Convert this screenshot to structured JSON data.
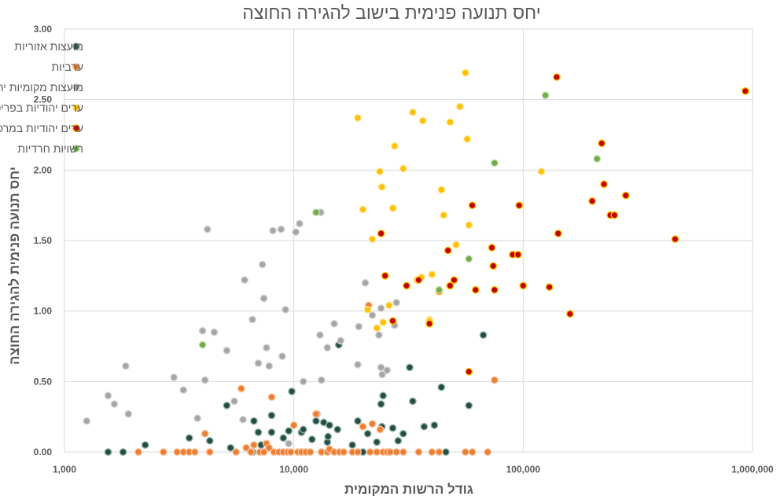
{
  "chart_data": {
    "type": "scatter",
    "title": "יחס תנועה פנימית בישוב להגירה החוצה",
    "xlabel": "גודל הרשות המקומית",
    "ylabel": "יחס תנועה פנימית להגירה החוצה",
    "xscale": "log",
    "xlim": [
      1000,
      1000000
    ],
    "ylim": [
      0,
      3
    ],
    "xticks": [
      {
        "value": 1000,
        "label": "1,000"
      },
      {
        "value": 10000,
        "label": "10,000"
      },
      {
        "value": 100000,
        "label": "100,000"
      },
      {
        "value": 1000000,
        "label": "1,000,000"
      }
    ],
    "yticks": [
      {
        "value": 0,
        "label": "0.00"
      },
      {
        "value": 0.5,
        "label": "0.50"
      },
      {
        "value": 1,
        "label": "1.00"
      },
      {
        "value": 1.5,
        "label": "1.50"
      },
      {
        "value": 2,
        "label": "2.00"
      },
      {
        "value": 2.5,
        "label": "2.50"
      },
      {
        "value": 3,
        "label": "3.00"
      }
    ],
    "grid": true,
    "legend_position": "top-left",
    "series": [
      {
        "name": "מועצות אזוריות",
        "color": "#264d3f",
        "edge": "#95b6ad",
        "points": [
          [
            1550,
            0.0
          ],
          [
            1800,
            0.0
          ],
          [
            2250,
            0.05
          ],
          [
            3500,
            0.1
          ],
          [
            4300,
            0.08
          ],
          [
            5100,
            0.33
          ],
          [
            5300,
            0.03
          ],
          [
            6600,
            0.0
          ],
          [
            6700,
            0.22
          ],
          [
            7000,
            0.14
          ],
          [
            7200,
            0.05
          ],
          [
            8000,
            0.26
          ],
          [
            8000,
            0.14
          ],
          [
            9000,
            0.1
          ],
          [
            9500,
            0.15
          ],
          [
            9800,
            0.43
          ],
          [
            10800,
            0.14
          ],
          [
            11000,
            0.16
          ],
          [
            12000,
            0.09
          ],
          [
            12500,
            0.22
          ],
          [
            12600,
            0.27
          ],
          [
            13200,
            0.0
          ],
          [
            13500,
            0.21
          ],
          [
            14000,
            0.07
          ],
          [
            14100,
            0.11
          ],
          [
            14300,
            0.19
          ],
          [
            15500,
            0.16
          ],
          [
            15700,
            0.76
          ],
          [
            18000,
            0.05
          ],
          [
            19000,
            0.22
          ],
          [
            20000,
            0.0
          ],
          [
            21000,
            0.13
          ],
          [
            23000,
            0.07
          ],
          [
            24000,
            0.34
          ],
          [
            24200,
            0.18
          ],
          [
            24500,
            0.4
          ],
          [
            26000,
            0.0
          ],
          [
            27000,
            0.17
          ],
          [
            28500,
            0.08
          ],
          [
            30000,
            0.13
          ],
          [
            32000,
            0.6
          ],
          [
            33000,
            0.36
          ],
          [
            37000,
            0.18
          ],
          [
            41000,
            0.19
          ],
          [
            44000,
            0.46
          ],
          [
            46000,
            0.0
          ],
          [
            58000,
            0.33
          ],
          [
            67000,
            0.83
          ]
        ]
      },
      {
        "name": "ערביות",
        "color": "#ed7d31",
        "edge": "#f8c39e",
        "points": [
          [
            2100,
            0.0
          ],
          [
            2700,
            0.0
          ],
          [
            3100,
            0.0
          ],
          [
            3300,
            0.0
          ],
          [
            3500,
            0.0
          ],
          [
            3700,
            0.0
          ],
          [
            4100,
            0.13
          ],
          [
            4300,
            0.0
          ],
          [
            5600,
            0.0
          ],
          [
            5900,
            0.45
          ],
          [
            6200,
            0.03
          ],
          [
            6500,
            0.0
          ],
          [
            6700,
            0.05
          ],
          [
            7100,
            0.0
          ],
          [
            7400,
            0.0
          ],
          [
            7600,
            0.06
          ],
          [
            7800,
            0.03
          ],
          [
            8000,
            0.39
          ],
          [
            8200,
            0.0
          ],
          [
            8600,
            0.0
          ],
          [
            9000,
            0.0
          ],
          [
            9400,
            0.0
          ],
          [
            9700,
            0.0
          ],
          [
            10000,
            0.19
          ],
          [
            10400,
            0.0
          ],
          [
            10800,
            0.0
          ],
          [
            11300,
            0.0
          ],
          [
            11800,
            0.0
          ],
          [
            12500,
            0.27
          ],
          [
            13200,
            0.0
          ],
          [
            14000,
            0.0
          ],
          [
            14300,
            0.02
          ],
          [
            15000,
            0.0
          ],
          [
            15800,
            0.0
          ],
          [
            16500,
            0.0
          ],
          [
            18000,
            0.0
          ],
          [
            19000,
            0.0
          ],
          [
            20000,
            0.18
          ],
          [
            21200,
            1.04
          ],
          [
            21500,
            0.0
          ],
          [
            22000,
            0.2
          ],
          [
            23000,
            0.0
          ],
          [
            23800,
            0.16
          ],
          [
            24500,
            0.0
          ],
          [
            25500,
            0.0
          ],
          [
            26300,
            0.0
          ],
          [
            28000,
            0.0
          ],
          [
            30000,
            0.0
          ],
          [
            35000,
            0.0
          ],
          [
            40000,
            0.0
          ],
          [
            43000,
            0.0
          ],
          [
            56000,
            0.0
          ],
          [
            60000,
            0.0
          ],
          [
            70000,
            0.0
          ],
          [
            75000,
            0.51
          ]
        ]
      },
      {
        "name": "מועצות מקומיות יהודיות",
        "color": "#a5a5a5",
        "edge": "#d6d6d6",
        "points": [
          [
            1250,
            0.22
          ],
          [
            1550,
            0.4
          ],
          [
            1650,
            0.34
          ],
          [
            1850,
            0.61
          ],
          [
            1900,
            0.27
          ],
          [
            3000,
            0.53
          ],
          [
            3300,
            0.44
          ],
          [
            3800,
            0.24
          ],
          [
            4000,
            0.86
          ],
          [
            4100,
            0.51
          ],
          [
            4200,
            1.58
          ],
          [
            4500,
            0.85
          ],
          [
            5100,
            0.72
          ],
          [
            5500,
            0.36
          ],
          [
            6000,
            0.23
          ],
          [
            6100,
            1.22
          ],
          [
            6600,
            0.94
          ],
          [
            7000,
            0.63
          ],
          [
            7300,
            1.33
          ],
          [
            7400,
            1.09
          ],
          [
            7600,
            0.74
          ],
          [
            7800,
            0.61
          ],
          [
            8100,
            1.57
          ],
          [
            8800,
            1.58
          ],
          [
            8900,
            0.68
          ],
          [
            9200,
            1.01
          ],
          [
            9500,
            0.06
          ],
          [
            10200,
            1.56
          ],
          [
            10600,
            1.62
          ],
          [
            11000,
            0.5
          ],
          [
            13000,
            0.83
          ],
          [
            13200,
            0.51
          ],
          [
            14000,
            0.74
          ],
          [
            15000,
            0.91
          ],
          [
            16000,
            0.79
          ],
          [
            19000,
            0.62
          ],
          [
            19200,
            0.89
          ],
          [
            20500,
            1.2
          ],
          [
            22000,
            0.97
          ],
          [
            23500,
            0.83
          ],
          [
            24000,
            0.6
          ],
          [
            24300,
            0.55
          ],
          [
            25500,
            0.58
          ],
          [
            27500,
            0.9
          ],
          [
            28000,
            1.06
          ],
          [
            13100,
            1.7
          ],
          [
            43000,
            1.15
          ],
          [
            24000,
            1.02
          ]
        ]
      },
      {
        "name": "ערים יהודיות בפריפריה הכלכלית של ישראל",
        "color": "#ffc000",
        "edge": "#ffe699",
        "points": [
          [
            19000,
            2.37
          ],
          [
            20000,
            1.72
          ],
          [
            21000,
            1.01
          ],
          [
            22000,
            1.51
          ],
          [
            23000,
            0.88
          ],
          [
            23700,
            1.99
          ],
          [
            24200,
            1.88
          ],
          [
            24500,
            0.92
          ],
          [
            26000,
            1.04
          ],
          [
            27000,
            1.73
          ],
          [
            27500,
            2.17
          ],
          [
            30000,
            2.01
          ],
          [
            33000,
            2.41
          ],
          [
            34500,
            1.22
          ],
          [
            36000,
            1.24
          ],
          [
            36500,
            2.35
          ],
          [
            39000,
            0.94
          ],
          [
            40000,
            1.26
          ],
          [
            44000,
            1.86
          ],
          [
            45000,
            1.68
          ],
          [
            48000,
            2.34
          ],
          [
            51000,
            1.47
          ],
          [
            53000,
            2.45
          ],
          [
            56000,
            2.69
          ],
          [
            57000,
            2.22
          ],
          [
            58000,
            1.61
          ],
          [
            120000,
            1.99
          ],
          [
            39000,
            0.93
          ]
        ]
      },
      {
        "name": "ערים יהודיות במרכז הכלכלי של ישראל",
        "color": "#c00000",
        "edge": "#ffc000",
        "points": [
          [
            24000,
            1.55
          ],
          [
            25000,
            1.25
          ],
          [
            27000,
            0.93
          ],
          [
            31000,
            1.18
          ],
          [
            35000,
            1.22
          ],
          [
            39000,
            0.91
          ],
          [
            43000,
            1.14
          ],
          [
            47000,
            1.43
          ],
          [
            48000,
            1.18
          ],
          [
            50000,
            1.22
          ],
          [
            58000,
            0.57
          ],
          [
            60000,
            1.75
          ],
          [
            62000,
            1.15
          ],
          [
            73000,
            1.45
          ],
          [
            74000,
            1.32
          ],
          [
            75000,
            1.15
          ],
          [
            90000,
            1.4
          ],
          [
            95000,
            1.4
          ],
          [
            96000,
            1.75
          ],
          [
            100000,
            1.18
          ],
          [
            130000,
            1.17
          ],
          [
            140000,
            2.66
          ],
          [
            142000,
            1.55
          ],
          [
            160000,
            0.98
          ],
          [
            200000,
            1.78
          ],
          [
            220000,
            2.19
          ],
          [
            225000,
            1.9
          ],
          [
            240000,
            1.68
          ],
          [
            250000,
            1.68
          ],
          [
            280000,
            1.82
          ],
          [
            460000,
            1.51
          ],
          [
            930000,
            2.56
          ]
        ]
      },
      {
        "name": "רשויות חרדיות",
        "color": "#70ad47",
        "edge": "#c5e0b4",
        "points": [
          [
            4000,
            0.76
          ],
          [
            12500,
            1.7
          ],
          [
            43000,
            1.15
          ],
          [
            58000,
            1.37
          ],
          [
            75000,
            2.05
          ],
          [
            125000,
            2.53
          ],
          [
            210000,
            2.08
          ]
        ]
      }
    ]
  }
}
